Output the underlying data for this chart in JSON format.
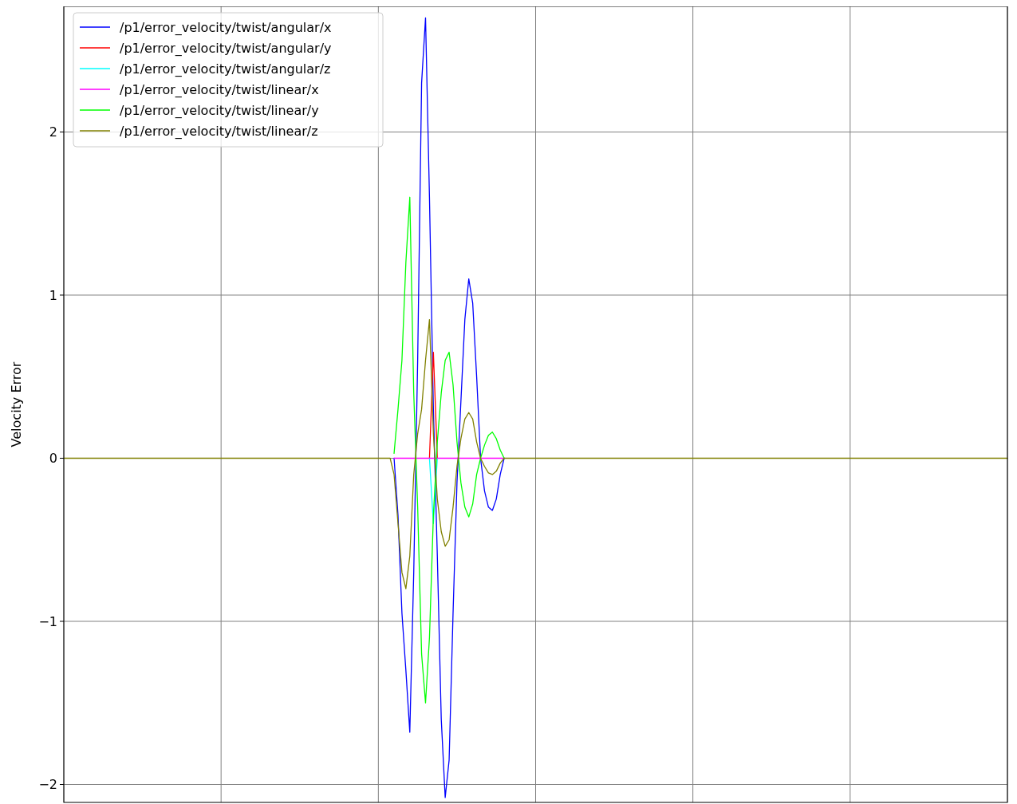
{
  "chart_data": {
    "type": "line",
    "ylabel": "Velocity Error",
    "ylim": [
      -2.11,
      2.77
    ],
    "yticks": [
      {
        "value": -2,
        "label": "−2"
      },
      {
        "value": -1,
        "label": "−1"
      },
      0,
      1,
      2
    ],
    "grid": true,
    "legend": "top left",
    "categories": [
      null,
      null,
      null,
      null,
      null,
      null,
      null,
      null,
      null,
      null,
      null,
      null,
      null,
      null,
      null,
      null,
      null,
      null,
      null,
      null,
      null,
      null,
      null,
      null,
      null,
      null,
      null,
      null,
      null,
      null,
      null,
      null,
      null,
      null,
      null,
      null,
      null,
      null,
      null,
      null,
      null,
      null,
      null,
      null,
      null,
      null,
      null,
      null,
      null,
      null,
      null,
      null,
      null,
      null,
      null,
      null,
      null,
      null,
      null,
      null,
      null,
      null,
      null,
      null,
      null,
      null,
      null,
      null,
      null,
      null,
      null,
      null,
      null,
      null,
      null,
      null,
      null,
      null,
      null,
      null,
      null,
      null,
      null,
      null,
      null,
      null,
      null,
      null,
      null,
      null,
      null,
      null,
      null,
      null,
      null,
      null,
      null,
      null,
      null,
      null,
      null,
      null,
      null,
      null,
      null,
      null,
      null,
      null,
      null,
      null,
      null,
      null,
      null,
      null,
      null,
      null,
      null,
      null,
      null,
      null,
      null,
      null,
      null,
      null,
      null,
      null,
      null,
      null,
      null,
      null,
      null,
      null,
      null,
      null,
      null,
      null,
      null,
      null,
      null,
      null,
      null,
      null,
      null,
      null,
      null,
      null,
      null,
      null,
      null,
      null,
      null,
      null,
      null,
      null,
      null,
      null,
      null,
      null,
      null,
      null,
      null,
      null,
      null,
      null,
      null,
      null,
      null,
      null,
      null,
      null,
      null,
      null,
      null,
      null,
      null,
      null,
      null,
      null,
      null,
      null,
      null,
      null,
      null,
      null,
      null,
      null,
      null,
      null,
      null,
      null,
      null,
      null,
      null,
      null,
      null,
      null,
      null,
      null,
      null,
      null,
      null,
      null,
      null,
      null,
      null,
      null,
      null,
      null,
      null,
      null,
      null,
      null,
      null,
      null,
      null,
      null,
      null,
      null,
      null,
      null,
      null,
      null,
      null,
      null,
      null,
      null,
      null,
      null,
      null,
      null,
      null,
      null,
      null,
      null,
      null,
      null,
      null,
      null,
      null,
      null,
      null
    ],
    "series": [
      {
        "name": "/p1/error_velocity/twist/angular/x",
        "color": "#0000ff",
        "values": [
          null,
          null,
          null,
          null,
          null,
          null,
          null,
          null,
          null,
          null,
          null,
          null,
          null,
          null,
          null,
          null,
          null,
          null,
          null,
          null,
          null,
          null,
          null,
          null,
          null,
          null,
          null,
          null,
          null,
          null,
          null,
          null,
          null,
          null,
          null,
          null,
          null,
          null,
          null,
          null,
          null,
          null,
          null,
          null,
          null,
          null,
          null,
          null,
          null,
          null,
          null,
          null,
          null,
          null,
          null,
          null,
          null,
          null,
          null,
          null,
          null,
          null,
          null,
          null,
          null,
          null,
          null,
          null,
          null,
          null,
          null,
          null,
          null,
          null,
          null,
          null,
          null,
          null,
          null,
          null,
          null,
          null,
          null,
          null,
          0,
          -0.35,
          -0.95,
          -1.3,
          -1.68,
          -0.7,
          0.6,
          2.3,
          2.7,
          1.6,
          0.3,
          -0.6,
          -1.6,
          -2.08,
          -1.85,
          -0.95,
          -0.15,
          0.35,
          0.85,
          1.1,
          0.95,
          0.5,
          0,
          -0.2,
          -0.3,
          -0.32,
          -0.25,
          -0.1,
          0,
          null,
          null,
          null,
          null,
          null,
          null,
          null,
          null,
          null,
          null,
          null,
          null,
          null,
          null,
          null,
          null,
          null,
          null,
          null,
          null,
          null,
          null,
          null,
          null,
          null,
          null,
          null,
          null,
          null,
          null,
          null,
          null,
          null,
          null,
          null,
          null,
          null,
          null,
          null,
          null,
          null,
          null,
          null,
          null,
          null,
          null,
          null,
          null,
          null,
          null,
          null,
          null,
          null,
          null,
          null,
          null,
          null,
          null,
          null,
          null,
          null,
          null,
          null,
          null,
          null,
          null,
          null,
          null,
          null,
          null,
          null,
          null,
          null,
          null,
          null,
          null,
          null,
          null,
          null,
          null,
          null,
          null,
          null,
          null,
          null,
          null,
          null,
          null,
          null,
          null,
          null,
          null,
          null,
          null,
          null,
          null,
          null,
          null,
          null,
          null,
          null,
          null,
          null,
          null,
          null,
          null,
          null,
          null,
          null,
          null,
          null,
          null,
          null,
          null,
          null,
          null,
          null,
          null,
          null,
          null,
          null,
          null,
          null,
          null,
          null,
          null,
          null,
          null
        ]
      },
      {
        "name": "/p1/error_velocity/twist/angular/y",
        "color": "#ff0000",
        "values": [
          null,
          null,
          null,
          null,
          null,
          null,
          null,
          null,
          null,
          null,
          null,
          null,
          null,
          null,
          null,
          null,
          null,
          null,
          null,
          null,
          null,
          null,
          null,
          null,
          null,
          null,
          null,
          null,
          null,
          null,
          null,
          null,
          null,
          null,
          null,
          null,
          null,
          null,
          null,
          null,
          null,
          null,
          null,
          null,
          null,
          null,
          null,
          null,
          null,
          null,
          null,
          null,
          null,
          null,
          null,
          null,
          null,
          null,
          null,
          null,
          null,
          null,
          null,
          null,
          null,
          null,
          null,
          null,
          null,
          null,
          null,
          null,
          null,
          null,
          null,
          null,
          null,
          null,
          null,
          null,
          null,
          null,
          null,
          null,
          null,
          null,
          null,
          null,
          null,
          null,
          null,
          null,
          null,
          0,
          0.65,
          0,
          null,
          null,
          null,
          null,
          null,
          null,
          null,
          null,
          null,
          null,
          null,
          null,
          null,
          null,
          null,
          null,
          null,
          null,
          null,
          null,
          null,
          null,
          null,
          null,
          null,
          null,
          null,
          null,
          null,
          null,
          null,
          null,
          null,
          null,
          null,
          null,
          null,
          null,
          null,
          null,
          null,
          null,
          null,
          null,
          null,
          null,
          null,
          null,
          null,
          null,
          null,
          null,
          null,
          null,
          null,
          null,
          null,
          null,
          null,
          null,
          null,
          null,
          null,
          null,
          null,
          null,
          null,
          null,
          null,
          null,
          null,
          null,
          null,
          null,
          null,
          null,
          null,
          null,
          null,
          null,
          null,
          null,
          null,
          null,
          null,
          null,
          null,
          null,
          null,
          null,
          null,
          null,
          null,
          null,
          null,
          null,
          null,
          null,
          null,
          null,
          null,
          null,
          null,
          null,
          null,
          null,
          null,
          null,
          null,
          null,
          null,
          null,
          null,
          null,
          null,
          null,
          null,
          null,
          null,
          null,
          null,
          null,
          null,
          null,
          null,
          null,
          null,
          null,
          null,
          null,
          null,
          null,
          null,
          null,
          null,
          null,
          null,
          null,
          null,
          null,
          null,
          null,
          null,
          null,
          null
        ]
      },
      {
        "name": "/p1/error_velocity/twist/angular/z",
        "color": "#00ffff",
        "values": [
          null,
          null,
          null,
          null,
          null,
          null,
          null,
          null,
          null,
          null,
          null,
          null,
          null,
          null,
          null,
          null,
          null,
          null,
          null,
          null,
          null,
          null,
          null,
          null,
          null,
          null,
          null,
          null,
          null,
          null,
          null,
          null,
          null,
          null,
          null,
          null,
          null,
          null,
          null,
          null,
          null,
          null,
          null,
          null,
          null,
          null,
          null,
          null,
          null,
          null,
          null,
          null,
          null,
          null,
          null,
          null,
          null,
          null,
          null,
          null,
          null,
          null,
          null,
          null,
          null,
          null,
          null,
          null,
          null,
          null,
          null,
          null,
          null,
          null,
          null,
          null,
          null,
          null,
          null,
          null,
          null,
          null,
          null,
          null,
          null,
          null,
          null,
          null,
          null,
          null,
          null,
          null,
          null,
          0,
          -0.4,
          0,
          null,
          null,
          null,
          null,
          null,
          null,
          null,
          null,
          null,
          null,
          null,
          null,
          null,
          null,
          null,
          null,
          null,
          null,
          null,
          null,
          null,
          null,
          null,
          null,
          null,
          null,
          null,
          null,
          null,
          null,
          null,
          null,
          null,
          null,
          null,
          null,
          null,
          null,
          null,
          null,
          null,
          null,
          null,
          null,
          null,
          null,
          null,
          null,
          null,
          null,
          null,
          null,
          null,
          null,
          null,
          null,
          null,
          null,
          null,
          null,
          null,
          null,
          null,
          null,
          null,
          null,
          null,
          null,
          null,
          null,
          null,
          null,
          null,
          null,
          null,
          null,
          null,
          null,
          null,
          null,
          null,
          null,
          null,
          null,
          null,
          null,
          null,
          null,
          null,
          null,
          null,
          null,
          null,
          null,
          null,
          null,
          null,
          null,
          null,
          null,
          null,
          null,
          null,
          null,
          null,
          null,
          null,
          null,
          null,
          null,
          null,
          null,
          null,
          null,
          null,
          null,
          null,
          null,
          null,
          null,
          null,
          null,
          null,
          null,
          null,
          null,
          null,
          null,
          null,
          null,
          null,
          null,
          null,
          null,
          null,
          null,
          null,
          null,
          null,
          null,
          null,
          null,
          null,
          null,
          null
        ]
      },
      {
        "name": "/p1/error_velocity/twist/linear/x",
        "color": "#ff00ff",
        "values": [
          null,
          null,
          null,
          null,
          null,
          null,
          null,
          null,
          null,
          null,
          null,
          null,
          null,
          null,
          null,
          null,
          null,
          null,
          null,
          null,
          null,
          null,
          null,
          null,
          null,
          null,
          null,
          null,
          null,
          null,
          null,
          null,
          null,
          null,
          null,
          null,
          null,
          null,
          null,
          null,
          null,
          null,
          null,
          null,
          null,
          null,
          null,
          null,
          null,
          null,
          null,
          null,
          null,
          null,
          null,
          null,
          null,
          null,
          null,
          null,
          null,
          null,
          null,
          null,
          null,
          null,
          null,
          null,
          null,
          null,
          null,
          null,
          null,
          null,
          null,
          null,
          null,
          null,
          null,
          null,
          null,
          null,
          null,
          null,
          0,
          0,
          0,
          0,
          0,
          0,
          0,
          0,
          0,
          0,
          0,
          0,
          0,
          0,
          0,
          0,
          0,
          0,
          0,
          0,
          0,
          0,
          0,
          0,
          0,
          0,
          0,
          0,
          0,
          null,
          null,
          null,
          null,
          null,
          null,
          null,
          null,
          null,
          null,
          null,
          null,
          null,
          null,
          null,
          null,
          null,
          null,
          null,
          null,
          null,
          null,
          null,
          null,
          null,
          null,
          null,
          null,
          null,
          null,
          null,
          null,
          null,
          null,
          null,
          null,
          null,
          null,
          null,
          null,
          null,
          null,
          null,
          null,
          null,
          null,
          null,
          null,
          null,
          null,
          null,
          null,
          null,
          null,
          null,
          null,
          null,
          null,
          null,
          null,
          null,
          null,
          null,
          null,
          null,
          null,
          null,
          null,
          null,
          null,
          null,
          null,
          null,
          null,
          null,
          null,
          null,
          null,
          null,
          null,
          null,
          null,
          null,
          null,
          null,
          null,
          null,
          null,
          null,
          null,
          null,
          null,
          null,
          null,
          null,
          null,
          null,
          null,
          null,
          null,
          null,
          null,
          null,
          null,
          null,
          null,
          null,
          null,
          null,
          null,
          null,
          null,
          null,
          null,
          null,
          null,
          null,
          null,
          null,
          null,
          null,
          null,
          null,
          null,
          null,
          null,
          null,
          null
        ]
      },
      {
        "name": "/p1/error_velocity/twist/linear/y",
        "color": "#00ff00",
        "values": [
          null,
          null,
          null,
          null,
          null,
          null,
          null,
          null,
          null,
          null,
          null,
          null,
          null,
          null,
          null,
          null,
          null,
          null,
          null,
          null,
          null,
          null,
          null,
          null,
          null,
          null,
          null,
          null,
          null,
          null,
          null,
          null,
          null,
          null,
          null,
          null,
          null,
          null,
          null,
          null,
          null,
          null,
          null,
          null,
          null,
          null,
          null,
          null,
          null,
          null,
          null,
          null,
          null,
          null,
          null,
          null,
          null,
          null,
          null,
          null,
          null,
          null,
          null,
          null,
          null,
          null,
          null,
          null,
          null,
          null,
          null,
          null,
          null,
          null,
          null,
          null,
          null,
          null,
          null,
          null,
          null,
          null,
          null,
          null,
          0.03,
          0.3,
          0.6,
          1.2,
          1.6,
          0.4,
          -0.3,
          -1.2,
          -1.5,
          -1.1,
          -0.35,
          0.1,
          0.4,
          0.6,
          0.65,
          0.45,
          0.1,
          -0.15,
          -0.3,
          -0.36,
          -0.28,
          -0.1,
          0,
          0.08,
          0.14,
          0.16,
          0.12,
          0.05,
          0,
          null,
          null,
          null,
          null,
          null,
          null,
          null,
          null,
          null,
          null,
          null,
          null,
          null,
          null,
          null,
          null,
          null,
          null,
          null,
          null,
          null,
          null,
          null,
          null,
          null,
          null,
          null,
          null,
          null,
          null,
          null,
          null,
          null,
          null,
          null,
          null,
          null,
          null,
          null,
          null,
          null,
          null,
          null,
          null,
          null,
          null,
          null,
          null,
          null,
          null,
          null,
          null,
          null,
          null,
          null,
          null,
          null,
          null,
          null,
          null,
          null,
          null,
          null,
          null,
          null,
          null,
          null,
          null,
          null,
          null,
          null,
          null,
          null,
          null,
          null,
          null,
          null,
          null,
          null,
          null,
          null,
          null,
          null,
          null,
          null,
          null,
          null,
          null,
          null,
          null,
          null,
          null,
          null,
          null,
          null,
          null,
          null,
          null,
          null,
          null,
          null,
          null,
          null,
          null,
          null,
          null,
          null,
          null,
          null,
          null,
          null,
          null,
          null,
          null,
          null,
          null,
          null,
          null,
          null,
          null,
          null,
          null,
          null,
          null,
          null,
          null,
          null,
          null
        ]
      },
      {
        "name": "/p1/error_velocity/twist/linear/z",
        "color": "#808000",
        "values": [
          0,
          0,
          0,
          0,
          0,
          0,
          0,
          0,
          0,
          0,
          0,
          0,
          0,
          0,
          0,
          0,
          0,
          0,
          0,
          0,
          0,
          0,
          0,
          0,
          0,
          0,
          0,
          0,
          0,
          0,
          0,
          0,
          0,
          0,
          0,
          0,
          0,
          0,
          0,
          0,
          0,
          0,
          0,
          0,
          0,
          0,
          0,
          0,
          0,
          0,
          0,
          0,
          0,
          0,
          0,
          0,
          0,
          0,
          0,
          0,
          0,
          0,
          0,
          0,
          0,
          0,
          0,
          0,
          0,
          0,
          0,
          0,
          0,
          0,
          0,
          0,
          0,
          0,
          0,
          0,
          0,
          0,
          0,
          0,
          -0.1,
          -0.4,
          -0.7,
          -0.8,
          -0.6,
          -0.1,
          0.15,
          0.3,
          0.6,
          0.85,
          0.15,
          -0.25,
          -0.45,
          -0.54,
          -0.5,
          -0.3,
          -0.05,
          0.12,
          0.24,
          0.28,
          0.24,
          0.1,
          0,
          -0.05,
          -0.09,
          -0.1,
          -0.08,
          -0.03,
          0,
          0,
          0,
          0,
          0,
          0,
          0,
          0,
          0,
          0,
          0,
          0,
          0,
          0,
          0,
          0,
          0,
          0,
          0,
          0,
          0,
          0,
          0,
          0,
          0,
          0,
          0,
          0,
          0,
          0,
          0,
          0,
          0,
          0,
          0,
          0,
          0,
          0,
          0,
          0,
          0,
          0,
          0,
          0,
          0,
          0,
          0,
          0,
          0,
          0,
          0,
          0,
          0,
          0,
          0,
          0,
          0,
          0,
          0,
          0,
          0,
          0,
          0,
          0,
          0,
          0,
          0,
          0,
          0,
          0,
          0,
          0,
          0,
          0,
          0,
          0,
          0,
          0,
          0,
          0,
          0,
          0,
          0,
          0,
          0,
          0,
          0,
          0,
          0,
          0,
          0,
          0,
          0,
          0,
          0,
          0,
          0,
          0,
          0,
          0,
          0,
          0,
          0,
          0,
          0,
          0,
          0,
          0,
          0,
          0,
          0,
          0,
          0,
          0,
          0,
          0,
          0,
          0,
          0,
          0,
          0,
          0,
          0,
          0,
          0,
          0,
          0,
          0,
          0
        ]
      }
    ]
  }
}
